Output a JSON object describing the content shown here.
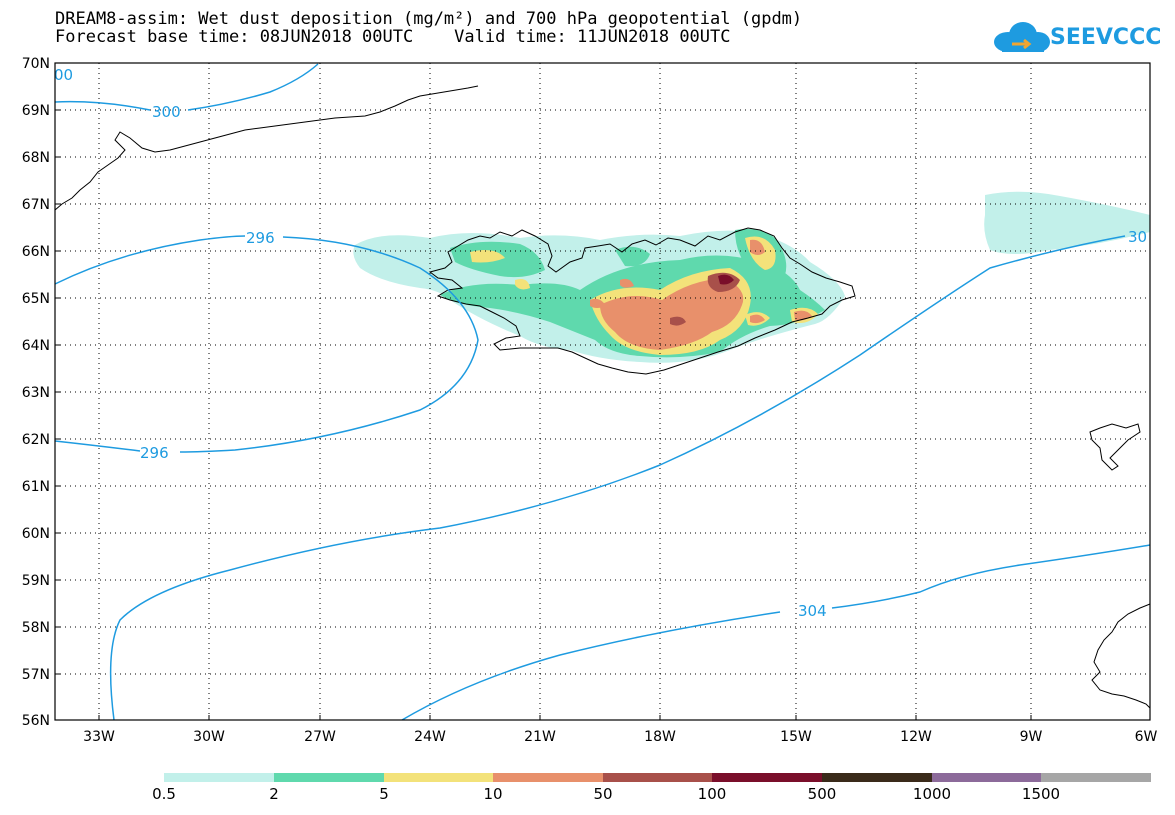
{
  "title_line1": "DREAM8-assim: Wet dust deposition (mg/m²) and 700 hPa geopotential (gpdm)",
  "title_line2": "Forecast base time: 08JUN2018 00UTC    Valid time: 11JUN2018 00UTC",
  "logo_text": "SEEVCCC",
  "logo_icon": "cloud-icon",
  "lat_labels": [
    "70N",
    "69N",
    "68N",
    "67N",
    "66N",
    "65N",
    "64N",
    "63N",
    "62N",
    "61N",
    "60N",
    "59N",
    "58N",
    "57N",
    "56N"
  ],
  "lon_labels": [
    "33W",
    "30W",
    "27W",
    "24W",
    "21W",
    "18W",
    "15W",
    "12W",
    "9W",
    "6W"
  ],
  "contour_labels": {
    "c300": "300",
    "c296_upper": "296",
    "c296_lower": "296",
    "c304": "304",
    "c30_right": "30",
    "c00_left": "00"
  },
  "contour_color": "#1e9be0",
  "legend": {
    "colors": [
      "#c2f0ea",
      "#5fd9ad",
      "#f3e27a",
      "#e8906b",
      "#a8504a",
      "#7a0e2a",
      "#3a2a1a",
      "#8c6a9a",
      "#a6a6a6"
    ],
    "labels": [
      "0.5",
      "2",
      "5",
      "10",
      "50",
      "100",
      "500",
      "1000",
      "1500"
    ]
  }
}
